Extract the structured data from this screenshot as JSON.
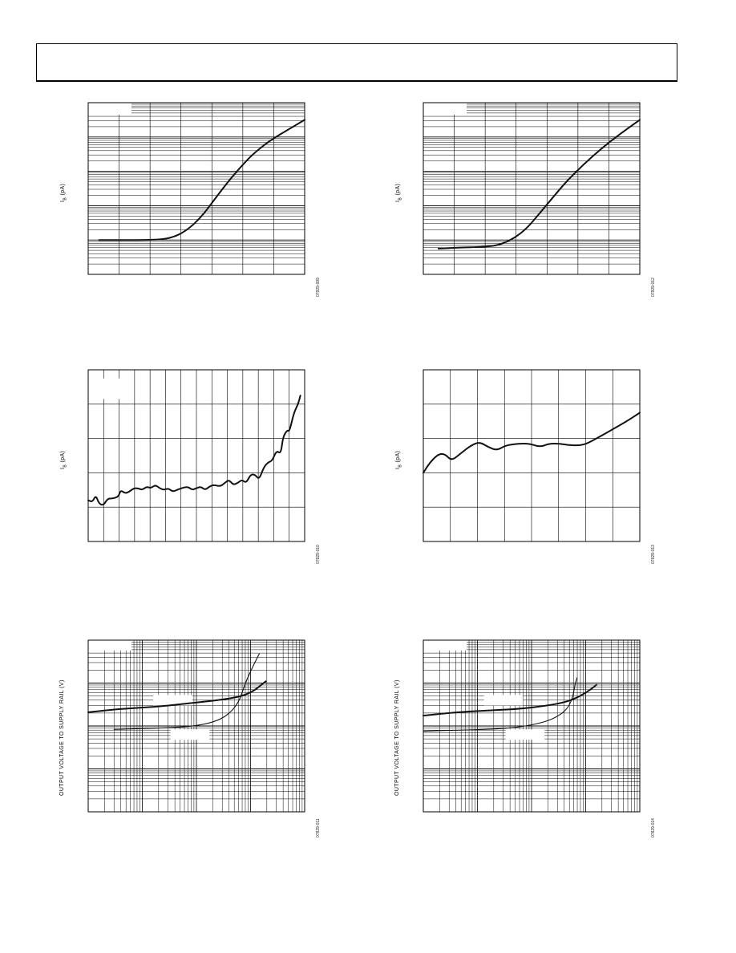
{
  "chart_data": [
    {
      "type": "line",
      "ylabel_main": "I",
      "ylabel_sub": "B",
      "ylabel_unit": " (pA)",
      "scale": "log-y",
      "grid": true,
      "figure_id": "07829-009",
      "series": [
        {
          "values": [
            [
              0.05,
              0.2
            ],
            [
              0.15,
              0.2
            ],
            [
              0.3,
              0.2
            ],
            [
              0.38,
              0.21
            ],
            [
              0.45,
              0.25
            ],
            [
              0.52,
              0.33
            ],
            [
              0.58,
              0.43
            ],
            [
              0.64,
              0.53
            ],
            [
              0.7,
              0.62
            ],
            [
              0.76,
              0.7
            ],
            [
              0.84,
              0.78
            ],
            [
              0.92,
              0.84
            ],
            [
              1.0,
              0.9
            ]
          ]
        }
      ]
    },
    {
      "type": "line",
      "ylabel_main": "I",
      "ylabel_sub": "B",
      "ylabel_unit": " (pA)",
      "scale": "log-y",
      "grid": true,
      "figure_id": "07829-012",
      "series": [
        {
          "values": [
            [
              0.07,
              0.15
            ],
            [
              0.15,
              0.155
            ],
            [
              0.28,
              0.16
            ],
            [
              0.35,
              0.17
            ],
            [
              0.42,
              0.21
            ],
            [
              0.48,
              0.27
            ],
            [
              0.54,
              0.36
            ],
            [
              0.6,
              0.45
            ],
            [
              0.66,
              0.54
            ],
            [
              0.74,
              0.64
            ],
            [
              0.82,
              0.73
            ],
            [
              0.9,
              0.81
            ],
            [
              1.0,
              0.9
            ]
          ]
        }
      ]
    },
    {
      "type": "line",
      "ylabel_main": "I",
      "ylabel_sub": "B",
      "ylabel_unit": " (pA)",
      "grid": true,
      "figure_id": "07829-010",
      "series": [
        {
          "values": [
            [
              0.0,
              0.24
            ],
            [
              0.02,
              0.23
            ],
            [
              0.035,
              0.27
            ],
            [
              0.05,
              0.22
            ],
            [
              0.07,
              0.21
            ],
            [
              0.09,
              0.25
            ],
            [
              0.11,
              0.25
            ],
            [
              0.14,
              0.26
            ],
            [
              0.15,
              0.3
            ],
            [
              0.17,
              0.28
            ],
            [
              0.19,
              0.29
            ],
            [
              0.21,
              0.31
            ],
            [
              0.23,
              0.31
            ],
            [
              0.25,
              0.3
            ],
            [
              0.27,
              0.32
            ],
            [
              0.29,
              0.31
            ],
            [
              0.31,
              0.33
            ],
            [
              0.33,
              0.31
            ],
            [
              0.35,
              0.3
            ],
            [
              0.37,
              0.31
            ],
            [
              0.39,
              0.29
            ],
            [
              0.41,
              0.3
            ],
            [
              0.43,
              0.31
            ],
            [
              0.46,
              0.32
            ],
            [
              0.48,
              0.3
            ],
            [
              0.5,
              0.31
            ],
            [
              0.52,
              0.32
            ],
            [
              0.54,
              0.3
            ],
            [
              0.56,
              0.32
            ],
            [
              0.58,
              0.33
            ],
            [
              0.61,
              0.32
            ],
            [
              0.63,
              0.34
            ],
            [
              0.65,
              0.36
            ],
            [
              0.67,
              0.33
            ],
            [
              0.69,
              0.34
            ],
            [
              0.71,
              0.36
            ],
            [
              0.73,
              0.34
            ],
            [
              0.75,
              0.39
            ],
            [
              0.77,
              0.39
            ],
            [
              0.79,
              0.36
            ],
            [
              0.81,
              0.43
            ],
            [
              0.83,
              0.46
            ],
            [
              0.85,
              0.47
            ],
            [
              0.87,
              0.53
            ],
            [
              0.89,
              0.51
            ],
            [
              0.9,
              0.61
            ],
            [
              0.92,
              0.65
            ],
            [
              0.93,
              0.64
            ],
            [
              0.95,
              0.75
            ],
            [
              0.97,
              0.8
            ],
            [
              0.98,
              0.85
            ]
          ]
        }
      ]
    },
    {
      "type": "line",
      "ylabel_main": "I",
      "ylabel_sub": "B",
      "ylabel_unit": " (pA)",
      "grid": true,
      "figure_id": "07829-013",
      "series": [
        {
          "values": [
            [
              0.0,
              0.4
            ],
            [
              0.03,
              0.46
            ],
            [
              0.07,
              0.51
            ],
            [
              0.1,
              0.51
            ],
            [
              0.13,
              0.47
            ],
            [
              0.17,
              0.51
            ],
            [
              0.22,
              0.56
            ],
            [
              0.26,
              0.58
            ],
            [
              0.3,
              0.55
            ],
            [
              0.34,
              0.53
            ],
            [
              0.38,
              0.56
            ],
            [
              0.44,
              0.57
            ],
            [
              0.49,
              0.57
            ],
            [
              0.54,
              0.55
            ],
            [
              0.58,
              0.57
            ],
            [
              0.63,
              0.57
            ],
            [
              0.68,
              0.56
            ],
            [
              0.74,
              0.56
            ],
            [
              0.8,
              0.6
            ],
            [
              0.87,
              0.65
            ],
            [
              0.94,
              0.7
            ],
            [
              1.0,
              0.75
            ]
          ]
        }
      ]
    },
    {
      "type": "line",
      "ylabel_main": "OUTPUT VOLTAGE TO SUPPLY RAIL (V)",
      "scale": "log-log",
      "grid": true,
      "figure_id": "07829-011",
      "series": [
        {
          "values": [
            [
              0.0,
              0.58
            ],
            [
              0.15,
              0.6
            ],
            [
              0.3,
              0.61
            ],
            [
              0.45,
              0.63
            ],
            [
              0.6,
              0.65
            ],
            [
              0.7,
              0.67
            ],
            [
              0.76,
              0.7
            ],
            [
              0.8,
              0.74
            ],
            [
              0.82,
              0.76
            ]
          ]
        },
        {
          "values": [
            [
              0.12,
              0.48
            ],
            [
              0.25,
              0.485
            ],
            [
              0.38,
              0.49
            ],
            [
              0.5,
              0.5
            ],
            [
              0.6,
              0.53
            ],
            [
              0.66,
              0.58
            ],
            [
              0.7,
              0.65
            ],
            [
              0.72,
              0.73
            ],
            [
              0.75,
              0.82
            ],
            [
              0.79,
              0.92
            ]
          ]
        }
      ]
    },
    {
      "type": "line",
      "ylabel_main": "OUTPUT VOLTAGE TO SUPPLY RAIL (V)",
      "scale": "log-log",
      "grid": true,
      "figure_id": "07829-014",
      "series": [
        {
          "values": [
            [
              0.0,
              0.56
            ],
            [
              0.15,
              0.58
            ],
            [
              0.3,
              0.59
            ],
            [
              0.45,
              0.6
            ],
            [
              0.58,
              0.62
            ],
            [
              0.66,
              0.64
            ],
            [
              0.72,
              0.67
            ],
            [
              0.77,
              0.71
            ],
            [
              0.8,
              0.74
            ]
          ]
        },
        {
          "values": [
            [
              0.0,
              0.47
            ],
            [
              0.15,
              0.475
            ],
            [
              0.3,
              0.48
            ],
            [
              0.42,
              0.49
            ],
            [
              0.52,
              0.51
            ],
            [
              0.6,
              0.54
            ],
            [
              0.66,
              0.59
            ],
            [
              0.69,
              0.66
            ],
            [
              0.7,
              0.74
            ],
            [
              0.71,
              0.78
            ]
          ]
        }
      ]
    }
  ]
}
